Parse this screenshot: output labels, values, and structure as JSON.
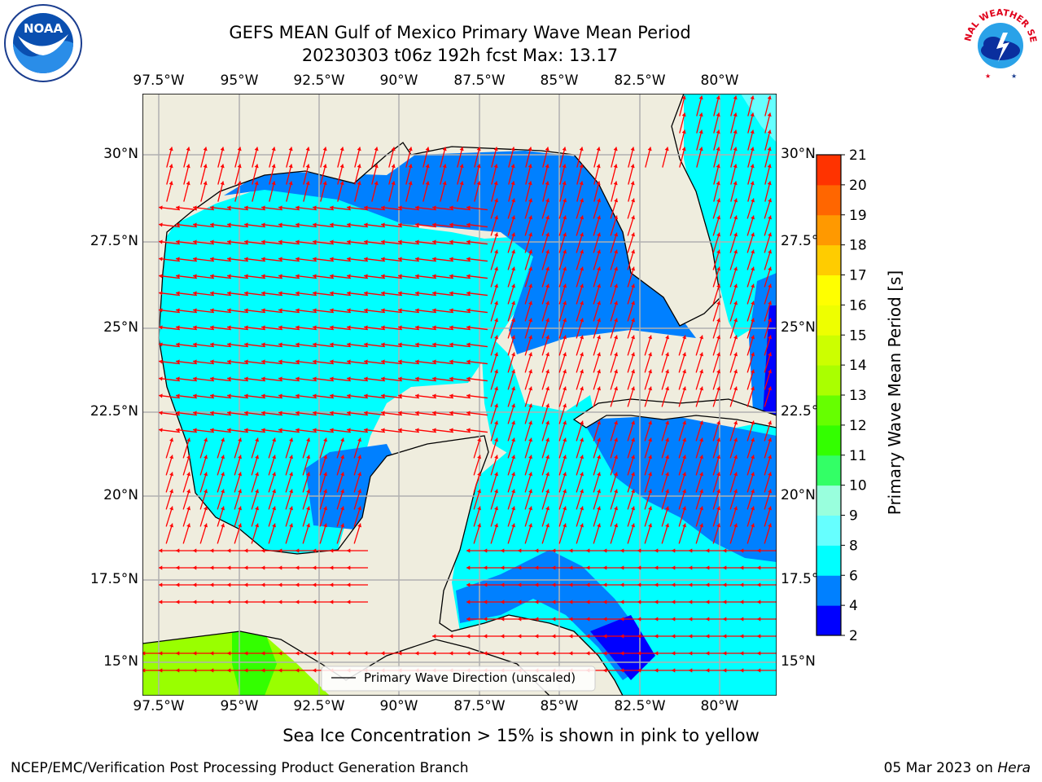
{
  "title_line1": "GEFS MEAN Gulf of Mexico Primary Wave Mean Period",
  "title_line2": "20230303 t06z 192h fcst   Max: 13.17",
  "lon_labels": [
    "97.5°W",
    "95°W",
    "92.5°W",
    "90°W",
    "87.5°W",
    "85°W",
    "82.5°W",
    "80°W"
  ],
  "lat_labels": [
    "30°N",
    "27.5°N",
    "25°N",
    "22.5°N",
    "20°N",
    "17.5°N",
    "15°N"
  ],
  "legend_label": "Primary Wave Direction (unscaled)",
  "colorbar": {
    "label": "Primary Wave Mean Period [s]",
    "ticks": [
      "2",
      "4",
      "6",
      "8",
      "9",
      "10",
      "11",
      "12",
      "13",
      "14",
      "15",
      "16",
      "17",
      "18",
      "19",
      "20",
      "21"
    ],
    "colors": [
      "#0000ff",
      "#0080ff",
      "#00ffff",
      "#66ffff",
      "#99ffdd",
      "#33ff66",
      "#33ff00",
      "#66ff00",
      "#aaff00",
      "#ccff00",
      "#eeff00",
      "#ffff00",
      "#ffcc00",
      "#ff9900",
      "#ff6600",
      "#ff3300",
      "#ff0000"
    ]
  },
  "caption": "Sea Ice Concentration > 15% is shown in pink to yellow",
  "footer_left": "NCEP/EMC/Verification Post Processing Product Generation Branch",
  "footer_right_date": "05 Mar 2023 on",
  "footer_right_host": "Hera",
  "logos": {
    "noaa": "NOAA",
    "nws": "NATIONAL WEATHER SERVICE"
  },
  "colors": {
    "land": "#efedde",
    "arrow": "#ff0000",
    "grid": "#b0b0b0"
  }
}
